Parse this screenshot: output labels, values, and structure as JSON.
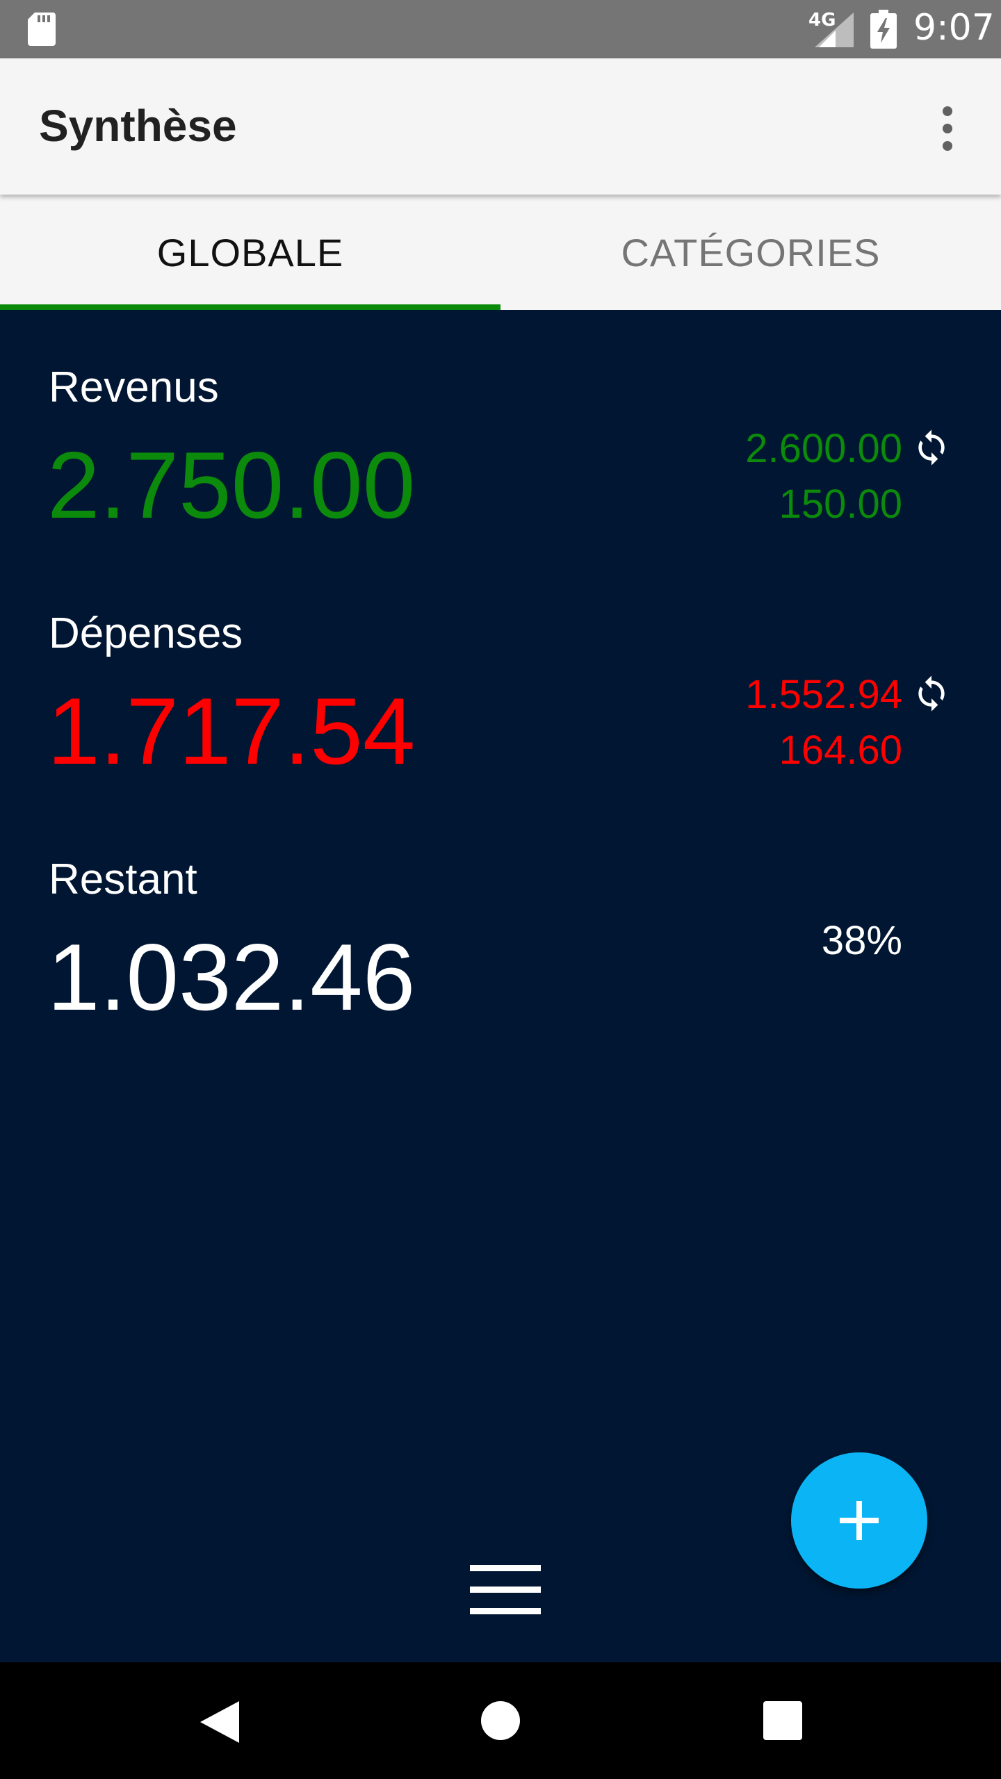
{
  "status_bar": {
    "network_label": "4G",
    "time": "9:07",
    "icons": [
      "sd-card-icon",
      "signal-icon",
      "battery-charging-icon"
    ]
  },
  "app_bar": {
    "title": "Synthèse",
    "menu_icon": "more-vert-icon"
  },
  "tabs": [
    {
      "label": "GLOBALE",
      "selected": true
    },
    {
      "label": "CATÉGORIES",
      "selected": false
    }
  ],
  "summary": {
    "revenus": {
      "label": "Revenus",
      "total": "2.750.00",
      "recurring": "2.600.00",
      "other": "150.00"
    },
    "depenses": {
      "label": "Dépenses",
      "total": "1.717.54",
      "recurring": "1.552.94",
      "other": "164.60"
    },
    "restant": {
      "label": "Restant",
      "total": "1.032.46",
      "percent": "38%"
    }
  },
  "colors": {
    "background": "#011632",
    "income": "#0b8a0b",
    "expense": "#ff0000",
    "fab": "#0bb5f5",
    "tab_indicator": "#0a8a0a"
  },
  "fab": {
    "icon": "plus-icon"
  },
  "bottom_menu": {
    "icon": "hamburger-menu-icon"
  },
  "nav_bar": {
    "icons": [
      "back-icon",
      "home-icon",
      "recents-icon"
    ]
  }
}
